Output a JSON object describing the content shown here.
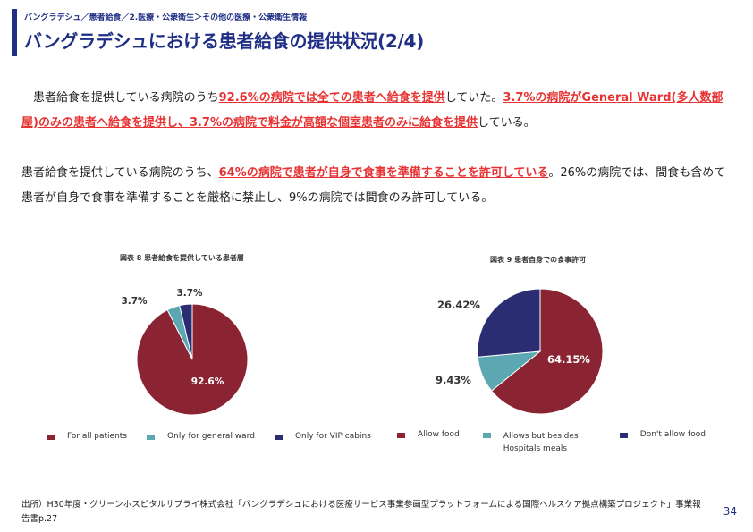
{
  "header": {
    "breadcrumb": "バングラデシュ／患者給食／2.医療・公衆衛生＞その他の医療・公衆衛生情報",
    "title": "バングラデシュにおける患者給食の提供状況(2/4)"
  },
  "paragraph1": {
    "t1": "　患者給食を提供している病院のうち",
    "h1": "92.6%の病院では全ての患者へ給食を提供",
    "t2": "していた。",
    "h2": "3.7%の病院がGeneral Ward(多人数部屋)のみの患者へ給食を提供し、3.7%の病院で料金が高額な個室患者のみに給食を提供",
    "t3": "している。"
  },
  "paragraph2": {
    "t1": "患者給食を提供している病院のうち、",
    "h1": "64%の病院で患者が自身で食事を準備することを許可している",
    "t2": "。26%の病院では、間食も含めて患者が自身で食事を準備することを厳格に禁止し、9%の病院では間食のみ許可している。"
  },
  "chart_data": [
    {
      "type": "pie",
      "title": "図表 8 患者給食を提供している患者層",
      "categories": [
        "For all patients",
        "Only for general ward",
        "Only for VIP cabins"
      ],
      "values": [
        92.6,
        3.7,
        3.7
      ],
      "data_labels": [
        "92.6%",
        "3.7%",
        "3.7%"
      ],
      "colors": [
        "#8b2432",
        "#5ba8b3",
        "#2a2d72"
      ],
      "legend": "bottom"
    },
    {
      "type": "pie",
      "title": "図表 9 患者自身での食事許可",
      "categories": [
        "Allow food",
        "Allows but besides Hospitals meals",
        "Don't allow food"
      ],
      "values": [
        64.15,
        9.43,
        26.42
      ],
      "data_labels": [
        "64.15%",
        "9.43%",
        "26.42%"
      ],
      "colors": [
        "#8b2432",
        "#5ba8b3",
        "#2a2d72"
      ],
      "legend": "bottom"
    }
  ],
  "footer": {
    "source": "出所）H30年度・グリーンホスピタルサプライ株式会社「バングラデシュにおける医療サービス事業参画型プラットフォームによる国際ヘルスケア拠点構築プロジェクト」事業報告書p.27",
    "page_number": "34"
  }
}
